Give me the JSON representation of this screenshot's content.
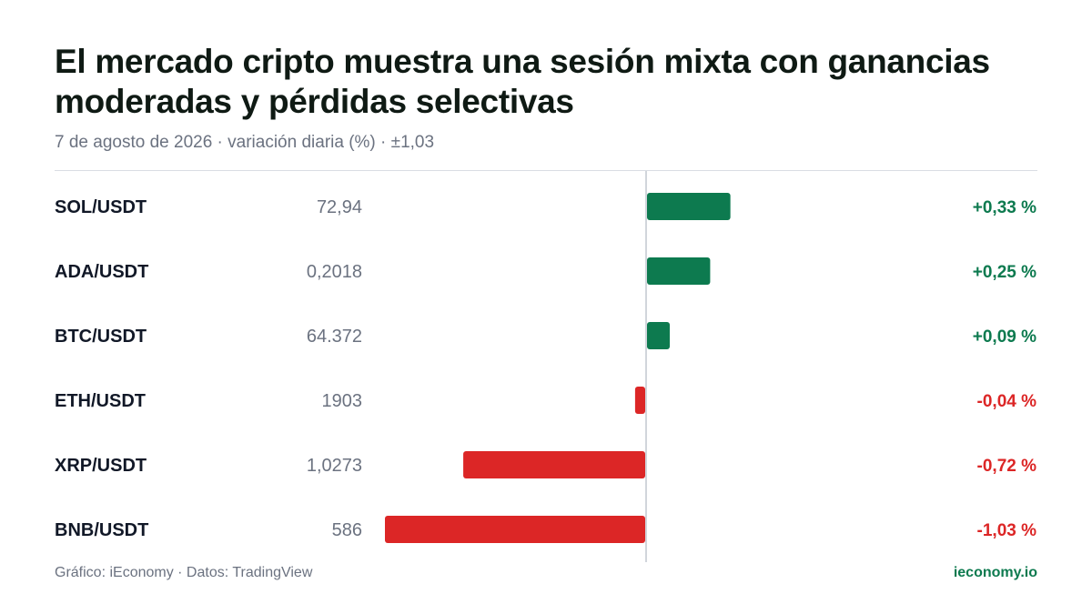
{
  "header": {
    "title": "El mercado cripto muestra una sesión mixta con ganancias moderadas y pérdidas selectivas",
    "subtitle": "7 de agosto de 2026 · variación diaria (%) · ±1,03"
  },
  "footer": {
    "source": "Gráfico: iEconomy · Datos: TradingView",
    "brand": "ieconomy.io"
  },
  "colors": {
    "positive": "#0d7a4f",
    "negative": "#dc2626",
    "brand": "#0d7a4f"
  },
  "chart_data": {
    "type": "bar",
    "orientation": "horizontal",
    "title": "El mercado cripto muestra una sesión mixta con ganancias moderadas y pérdidas selectivas",
    "subtitle": "7 de agosto de 2026 · variación diaria (%) · ±1,03",
    "xlim": [
      -1.03,
      1.03
    ],
    "rows": [
      {
        "symbol": "SOL/USDT",
        "price": "72,94",
        "change": 0.33,
        "change_label": "+0,33 %"
      },
      {
        "symbol": "ADA/USDT",
        "price": "0,2018",
        "change": 0.25,
        "change_label": "+0,25 %"
      },
      {
        "symbol": "BTC/USDT",
        "price": "64.372",
        "change": 0.09,
        "change_label": "+0,09 %"
      },
      {
        "symbol": "ETH/USDT",
        "price": "1903",
        "change": -0.04,
        "change_label": "-0,04 %"
      },
      {
        "symbol": "XRP/USDT",
        "price": "1,0273",
        "change": -0.72,
        "change_label": "-0,72 %"
      },
      {
        "symbol": "BNB/USDT",
        "price": "586",
        "change": -1.03,
        "change_label": "-1,03 %"
      }
    ]
  }
}
